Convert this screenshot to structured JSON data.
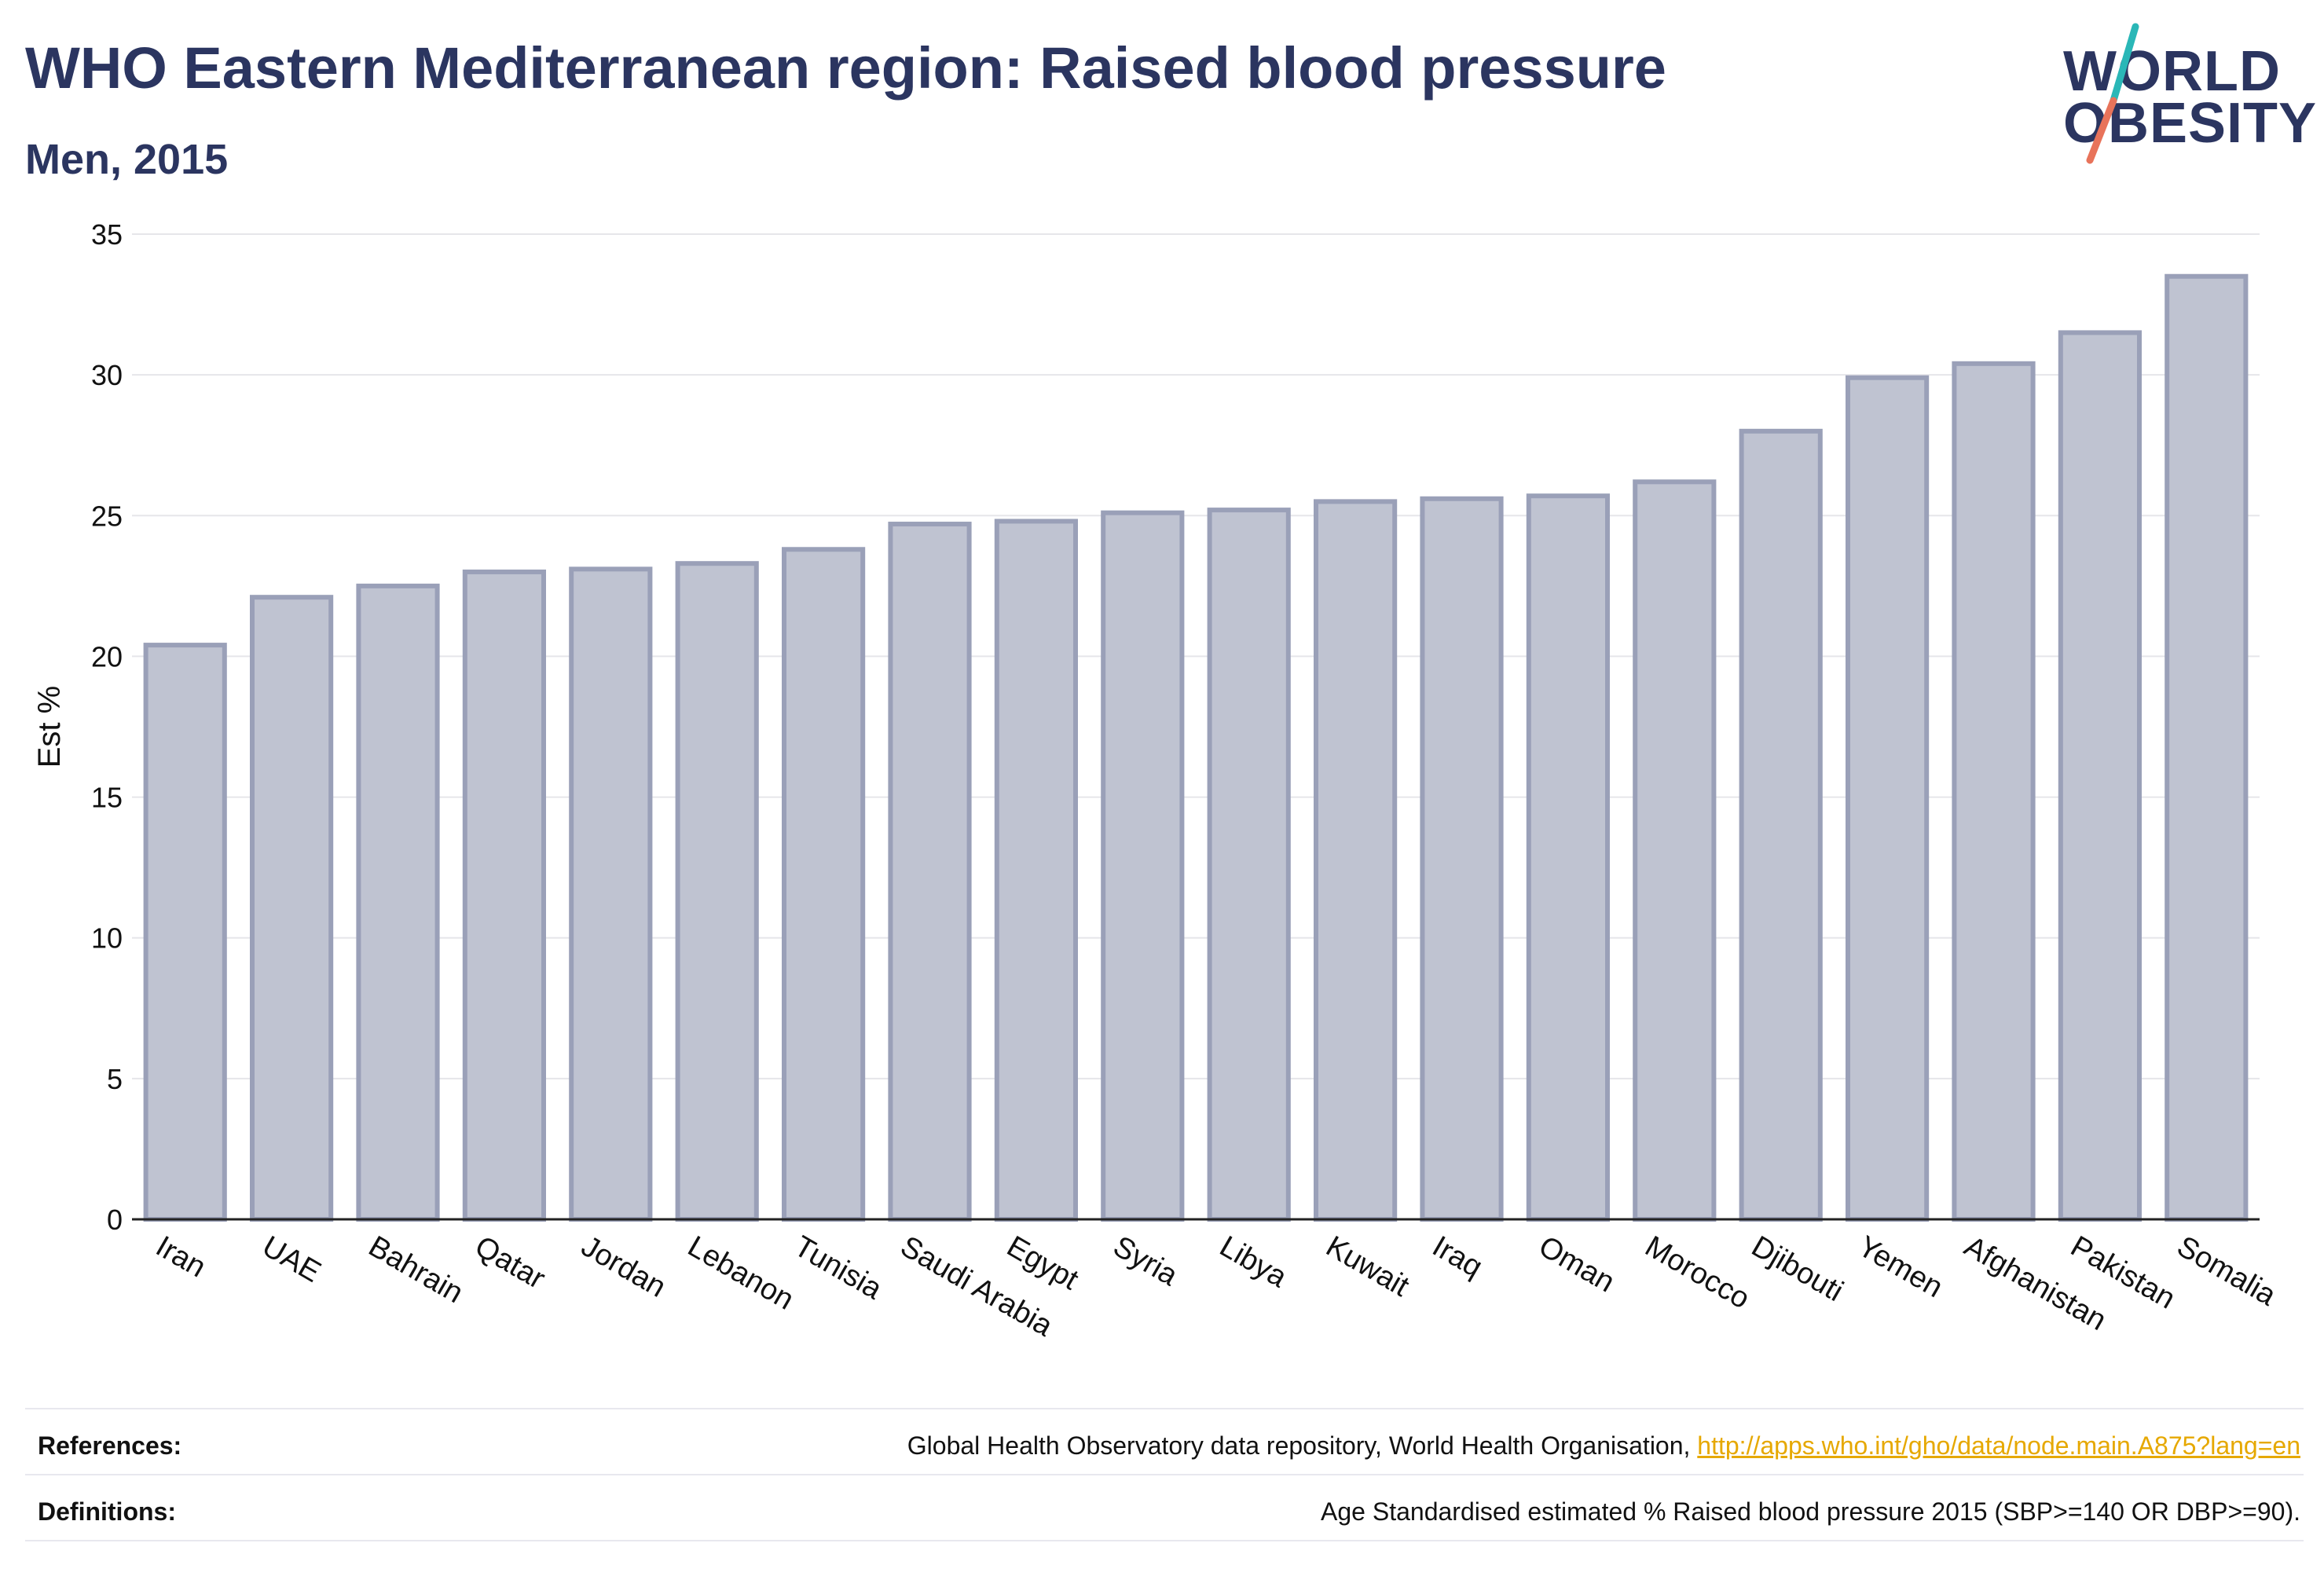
{
  "header": {
    "title": "WHO Eastern Mediterranean region: Raised blood pressure",
    "subtitle": "Men, 2015"
  },
  "logo": {
    "line1": "WORLD",
    "line2": "OBESITY",
    "accent_colors": [
      "#2ab7b7",
      "#e8735a"
    ]
  },
  "colors": {
    "bar_fill": "#bfc3d1",
    "bar_stroke": "#9aa0b8",
    "axis_text": "#111111",
    "grid": "#e6e6ea"
  },
  "chart_data": {
    "type": "bar",
    "title": "WHO Eastern Mediterranean region: Raised blood pressure",
    "subtitle": "Men, 2015",
    "ylabel": "Est %",
    "xlabel": "",
    "ylim": [
      0,
      35
    ],
    "yticks": [
      0,
      5,
      10,
      15,
      20,
      25,
      30,
      35
    ],
    "grid": true,
    "categories": [
      "Iran",
      "UAE",
      "Bahrain",
      "Qatar",
      "Jordan",
      "Lebanon",
      "Tunisia",
      "Saudi Arabia",
      "Egypt",
      "Syria",
      "Libya",
      "Kuwait",
      "Iraq",
      "Oman",
      "Morocco",
      "Djibouti",
      "Yemen",
      "Afghanistan",
      "Pakistan",
      "Somalia"
    ],
    "values": [
      20.4,
      22.1,
      22.5,
      23.0,
      23.1,
      23.3,
      23.8,
      24.7,
      24.8,
      25.1,
      25.2,
      25.5,
      25.6,
      25.7,
      26.2,
      28.0,
      29.9,
      30.4,
      31.5,
      33.5
    ]
  },
  "footer": {
    "references_label": "References:",
    "references_text": "Global Health Observatory data repository, World Health Organisation, ",
    "references_link": "http://apps.who.int/gho/data/node.main.A875?lang=en",
    "definitions_label": "Definitions:",
    "definitions_text": "Age Standardised estimated % Raised blood pressure 2015 (SBP>=140 OR DBP>=90)."
  }
}
